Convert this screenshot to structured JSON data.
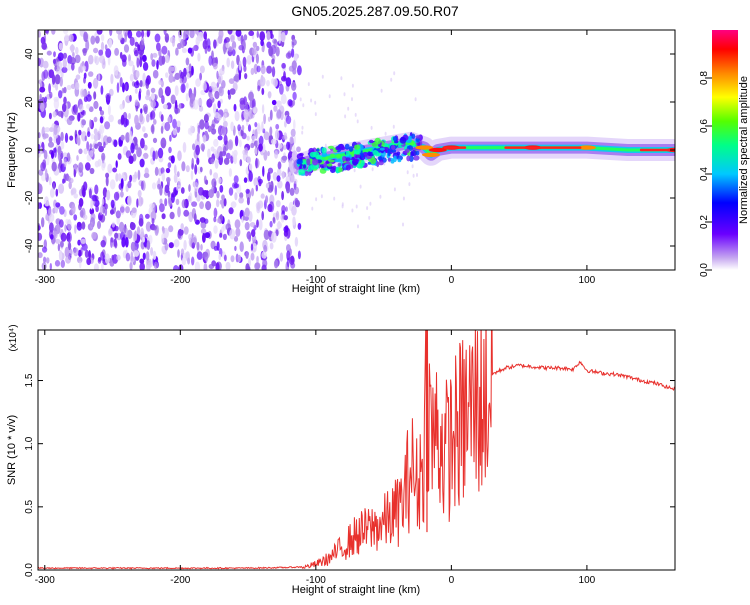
{
  "title": "GN05.2025.287.09.50.R07",
  "chart_data": [
    {
      "type": "heatmap",
      "name": "spectrogram",
      "xlabel": "Height of straight line (km)",
      "ylabel": "Frequency (Hz)",
      "xlim": [
        -305,
        165
      ],
      "ylim": [
        -50,
        50
      ],
      "xticks": [
        -300,
        -200,
        -100,
        0,
        100
      ],
      "xtick_labels": [
        "-300",
        "-200",
        "-100",
        "0",
        "100"
      ],
      "yticks": [
        -40,
        -20,
        0,
        20,
        40
      ],
      "ytick_labels": [
        "-40",
        "-20",
        "0",
        "20",
        "40"
      ],
      "colorbar": {
        "label": "Normalized spectral amplitude",
        "range": [
          0,
          1
        ],
        "ticks": [
          0.0,
          0.2,
          0.4,
          0.6,
          0.8
        ],
        "tick_labels": [
          "0.0",
          "0.2",
          "0.4",
          "0.6",
          "0.8"
        ]
      },
      "ridge": {
        "x": [
          -112,
          -100,
          -80,
          -60,
          -40,
          -30,
          -20,
          -15,
          -10,
          0,
          20,
          60,
          100,
          130,
          165
        ],
        "freq": [
          -6,
          -4,
          -2,
          0,
          2,
          3,
          1,
          -2,
          0,
          1,
          1,
          1,
          1,
          0,
          0
        ],
        "amplitude": [
          0.2,
          0.3,
          0.35,
          0.4,
          0.45,
          0.6,
          0.8,
          0.85,
          0.9,
          0.95,
          0.7,
          0.9,
          0.8,
          0.55,
          0.9
        ]
      },
      "noise_region_x": [
        -305,
        -112
      ]
    },
    {
      "type": "line",
      "name": "snr",
      "xlabel": "Height of straight line (km)",
      "ylabel": "SNR (10 * v/v)",
      "y_multiplier": "(x10⁴)",
      "xlim": [
        -305,
        165
      ],
      "ylim": [
        0,
        1.9
      ],
      "xticks": [
        -300,
        -200,
        -100,
        0,
        100
      ],
      "xtick_labels": [
        "-300",
        "-200",
        "-100",
        "0",
        "100"
      ],
      "yticks": [
        0.0,
        0.5,
        1.0,
        1.5
      ],
      "ytick_labels": [
        "0.0",
        "0.5",
        "1.0",
        "1.5"
      ],
      "color": "#e8312d",
      "series": [
        {
          "name": "SNR",
          "x": [
            -305,
            -250,
            -200,
            -150,
            -120,
            -110,
            -100,
            -90,
            -80,
            -70,
            -60,
            -50,
            -40,
            -35,
            -30,
            -25,
            -20,
            -18,
            -15,
            -10,
            -5,
            0,
            10,
            20,
            25,
            30,
            40,
            50,
            60,
            70,
            80,
            90,
            95,
            100,
            110,
            120,
            130,
            140,
            150,
            165
          ],
          "y": [
            0.01,
            0.01,
            0.01,
            0.01,
            0.015,
            0.02,
            0.05,
            0.1,
            0.2,
            0.3,
            0.35,
            0.4,
            0.5,
            0.6,
            0.9,
            0.7,
            1.0,
            1.9,
            1.1,
            1.2,
            1.0,
            1.1,
            1.3,
            1.45,
            1.5,
            1.55,
            1.6,
            1.62,
            1.61,
            1.6,
            1.6,
            1.59,
            1.65,
            1.58,
            1.56,
            1.55,
            1.53,
            1.5,
            1.48,
            1.43
          ]
        }
      ]
    }
  ]
}
